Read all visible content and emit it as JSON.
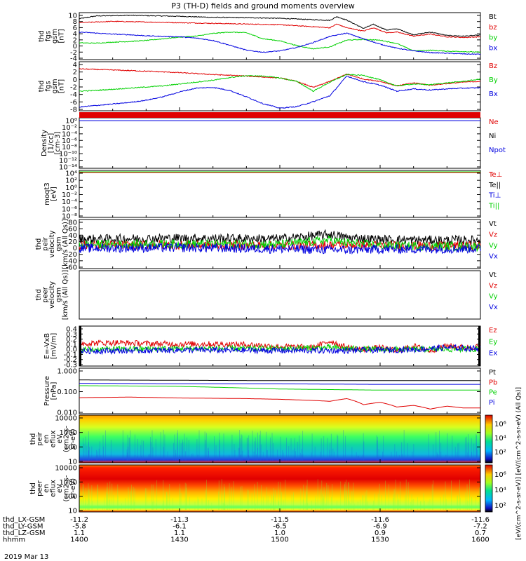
{
  "title": "P3 (TH-D) fields and ground moments overview",
  "date_label": "2019 Mar 13",
  "colors": {
    "black": "#000000",
    "red": "#e00000",
    "green": "#00d000",
    "blue": "#0000e0"
  },
  "chart_data": [
    {
      "id": "p1",
      "type": "line",
      "ylabel": [
        "thd",
        "fgs",
        "gsm",
        "[nT]"
      ],
      "yticks": [
        "10",
        "8",
        "6",
        "4",
        "2",
        "0",
        "-2",
        "-4"
      ],
      "legend": [
        {
          "label": "Bt",
          "color": "#000000"
        },
        {
          "label": "bz",
          "color": "#e00000"
        },
        {
          "label": "by",
          "color": "#00d000"
        },
        {
          "label": "bx",
          "color": "#0000e0"
        }
      ],
      "series": [
        {
          "name": "Bt",
          "color": "#000000",
          "x": [
            1400,
            1405,
            1415,
            1425,
            1430,
            1440,
            1450,
            1500,
            1510,
            1515,
            1517,
            1520,
            1525,
            1528,
            1532,
            1535,
            1540,
            1545,
            1550,
            1555,
            1600
          ],
          "y": [
            8.2,
            9.0,
            9.2,
            9.0,
            8.9,
            8.6,
            8.5,
            8.3,
            7.9,
            7.7,
            8.8,
            7.8,
            5.3,
            6.5,
            4.8,
            5.2,
            3.4,
            4.2,
            3.2,
            3.0,
            3.3
          ]
        },
        {
          "name": "bz",
          "color": "#e00000",
          "x": [
            1400,
            1410,
            1420,
            1430,
            1440,
            1450,
            1500,
            1510,
            1515,
            1517,
            1520,
            1525,
            1528,
            1532,
            1535,
            1540,
            1545,
            1550,
            1555,
            1600
          ],
          "y": [
            7.0,
            7.4,
            7.2,
            7.0,
            6.8,
            6.6,
            6.4,
            5.8,
            5.5,
            6.6,
            5.5,
            4.5,
            5.5,
            4.0,
            4.2,
            3.0,
            3.6,
            2.8,
            2.6,
            2.8
          ]
        },
        {
          "name": "by",
          "color": "#00d000",
          "x": [
            1400,
            1405,
            1410,
            1415,
            1420,
            1425,
            1430,
            1435,
            1440,
            1445,
            1450,
            1455,
            1500,
            1505,
            1510,
            1515,
            1520,
            1525,
            1530,
            1535,
            1540,
            1545,
            1550,
            1555,
            1600
          ],
          "y": [
            1.0,
            0.9,
            1.2,
            1.4,
            1.7,
            2.2,
            2.7,
            3.0,
            3.8,
            4.2,
            4.0,
            2.2,
            1.6,
            0.2,
            -0.8,
            -0.2,
            1.8,
            2.0,
            1.8,
            0.8,
            -1.4,
            -1.2,
            -1.5,
            -1.6,
            -1.8
          ]
        },
        {
          "name": "bx",
          "color": "#0000e0",
          "x": [
            1400,
            1405,
            1410,
            1415,
            1420,
            1425,
            1430,
            1435,
            1440,
            1445,
            1450,
            1455,
            1500,
            1505,
            1510,
            1515,
            1520,
            1525,
            1530,
            1535,
            1540,
            1545,
            1550,
            1555,
            1600
          ],
          "y": [
            4.2,
            3.9,
            3.6,
            3.4,
            3.1,
            2.9,
            2.8,
            2.4,
            1.7,
            0.3,
            -1.2,
            -1.8,
            -1.4,
            -0.4,
            1.1,
            2.9,
            3.9,
            2.2,
            0.6,
            -0.6,
            -1.4,
            -1.9,
            -2.1,
            -2.3,
            -2.4
          ]
        }
      ]
    },
    {
      "id": "p2",
      "type": "line",
      "ylabel": [
        "thd",
        "fgs",
        "gsm",
        "[nT]"
      ],
      "yticks": [
        "4",
        "2",
        "0",
        "-2",
        "-4",
        "-6",
        "-8"
      ],
      "legend": [
        {
          "label": "Bz",
          "color": "#e00000"
        },
        {
          "label": "By",
          "color": "#00d000"
        },
        {
          "label": "Bx",
          "color": "#0000e0"
        }
      ],
      "series": [
        {
          "name": "Bz",
          "color": "#e00000",
          "x": [
            1400,
            1410,
            1420,
            1430,
            1440,
            1450,
            1500,
            1505,
            1510,
            1515,
            1520,
            1525,
            1530,
            1535,
            1540,
            1545,
            1550,
            1555,
            1600
          ],
          "y": [
            2.1,
            1.8,
            1.5,
            1.1,
            0.6,
            0.2,
            -0.3,
            -1.2,
            -2.8,
            -1.2,
            0.7,
            -0.6,
            -1.2,
            -2.4,
            -1.6,
            -2.2,
            -1.8,
            -1.4,
            -1.2
          ]
        },
        {
          "name": "By",
          "color": "#00d000",
          "x": [
            1400,
            1405,
            1410,
            1415,
            1420,
            1425,
            1430,
            1435,
            1440,
            1445,
            1450,
            1455,
            1500,
            1505,
            1510,
            1515,
            1520,
            1525,
            1530,
            1535,
            1540,
            1545,
            1550,
            1555,
            1600
          ],
          "y": [
            -3.8,
            -3.6,
            -3.3,
            -3.0,
            -2.7,
            -2.4,
            -1.9,
            -1.4,
            -0.9,
            -0.2,
            0.3,
            0.2,
            -0.3,
            -1.2,
            -3.8,
            -1.4,
            0.6,
            0.4,
            -0.8,
            -2.4,
            -1.9,
            -2.1,
            -1.6,
            -1.2,
            -0.6
          ]
        },
        {
          "name": "Bx",
          "color": "#0000e0",
          "x": [
            1400,
            1405,
            1410,
            1415,
            1420,
            1425,
            1430,
            1435,
            1440,
            1445,
            1450,
            1455,
            1500,
            1505,
            1510,
            1515,
            1520,
            1525,
            1530,
            1535,
            1540,
            1545,
            1550,
            1555,
            1600
          ],
          "y": [
            -8.0,
            -7.6,
            -7.2,
            -6.8,
            -6.2,
            -5.3,
            -4.0,
            -3.0,
            -2.8,
            -3.6,
            -5.3,
            -7.1,
            -8.3,
            -7.9,
            -6.6,
            -5.0,
            0.2,
            -1.3,
            -2.2,
            -3.8,
            -3.2,
            -3.5,
            -3.2,
            -3.0,
            -2.9
          ]
        }
      ]
    },
    {
      "id": "p3",
      "type": "line",
      "ylabel": [
        "Density",
        "[1/cc]",
        "[cm-3]"
      ],
      "yticks": [
        "10⁰",
        "10⁻²",
        "10⁻⁴",
        "10⁻⁶",
        "10⁻⁸",
        "10⁻¹⁰",
        "10⁻¹²",
        "10⁻¹⁴"
      ],
      "legend": [
        {
          "label": "Ne",
          "color": "#e00000"
        },
        {
          "label": "Ni",
          "color": "#000000"
        },
        {
          "label": "Npot",
          "color": "#0000e0"
        }
      ],
      "series": []
    },
    {
      "id": "p4",
      "type": "line",
      "ylabel": [
        "moqt3",
        "[eV]"
      ],
      "yticks": [
        "10⁴",
        "10²",
        "10⁰",
        "10⁻²",
        "10⁻⁴",
        "10⁻⁶",
        "10⁻⁸"
      ],
      "legend": [
        {
          "label": "Te⊥",
          "color": "#e00000"
        },
        {
          "label": "Te||",
          "color": "#000000"
        },
        {
          "label": "Ti⊥",
          "color": "#0000e0"
        },
        {
          "label": "Ti||",
          "color": "#00d000"
        }
      ],
      "series": []
    },
    {
      "id": "p5",
      "type": "line",
      "ylabel": [
        "thd",
        "peir",
        "velocity",
        "gsm",
        "[km/s (All Qs)]"
      ],
      "yticks": [
        "80",
        "60",
        "40",
        "20",
        "0",
        "-20",
        "-40",
        "-60"
      ],
      "legend": [
        {
          "label": "Vt",
          "color": "#000000"
        },
        {
          "label": "Vz",
          "color": "#e00000"
        },
        {
          "label": "Vy",
          "color": "#00d000"
        },
        {
          "label": "Vx",
          "color": "#0000e0"
        }
      ],
      "series": [
        {
          "name": "Vt",
          "color": "#000000",
          "x": [
            1400,
            1430,
            1500,
            1515,
            1520,
            1530,
            1545,
            1600
          ],
          "y": [
            25,
            28,
            26,
            40,
            30,
            24,
            22,
            22
          ]
        },
        {
          "name": "Vz",
          "color": "#e00000",
          "x": [
            1400,
            1430,
            1500,
            1520,
            1530,
            1600
          ],
          "y": [
            6,
            7,
            5,
            8,
            5,
            4
          ]
        },
        {
          "name": "Vy",
          "color": "#00d000",
          "x": [
            1400,
            1430,
            1500,
            1515,
            1520,
            1530,
            1600
          ],
          "y": [
            8,
            10,
            9,
            22,
            14,
            5,
            2
          ]
        },
        {
          "name": "Vx",
          "color": "#0000e0",
          "x": [
            1400,
            1430,
            1500,
            1520,
            1530,
            1600
          ],
          "y": [
            -3,
            -1,
            -5,
            -8,
            -6,
            -4
          ]
        }
      ]
    },
    {
      "id": "p6",
      "type": "line",
      "ylabel": [
        "thd",
        "peer",
        "velocity",
        "gsm",
        "[km/s (All Qs)]"
      ],
      "yticks": [],
      "legend": [
        {
          "label": "Vt",
          "color": "#000000"
        },
        {
          "label": "Vz",
          "color": "#e00000"
        },
        {
          "label": "Vy",
          "color": "#00d000"
        },
        {
          "label": "Vx",
          "color": "#0000e0"
        }
      ],
      "series": []
    },
    {
      "id": "p7",
      "type": "line",
      "ylabel": [
        "E=-VxB",
        "[mV/m]"
      ],
      "yticks": [
        "0.4",
        "0.3",
        "0.2",
        "0.1",
        "0.0",
        "-0.1",
        "-0.2",
        "-0.3"
      ],
      "legend": [
        {
          "label": "Ez",
          "color": "#e00000"
        },
        {
          "label": "Ey",
          "color": "#00d000"
        },
        {
          "label": "Ex",
          "color": "#0000e0"
        }
      ],
      "series": [
        {
          "name": "Ez",
          "color": "#e00000",
          "x": [
            1400,
            1410,
            1420,
            1430,
            1440,
            1450,
            1500,
            1510,
            1515,
            1520,
            1525,
            1530,
            1535,
            1540,
            1545,
            1550,
            1555,
            1600
          ],
          "y": [
            0.1,
            0.12,
            0.1,
            0.09,
            0.09,
            0.08,
            0.04,
            0.02,
            0.15,
            0.02,
            -0.02,
            0.02,
            -0.05,
            0.05,
            -0.04,
            0.06,
            0.02,
            0.04
          ]
        },
        {
          "name": "Ey",
          "color": "#00d000",
          "x": [
            1400,
            1430,
            1500,
            1515,
            1520,
            1530,
            1600
          ],
          "y": [
            -0.02,
            0.0,
            0.0,
            0.02,
            0.0,
            -0.02,
            -0.01
          ]
        },
        {
          "name": "Ex",
          "color": "#0000e0",
          "x": [
            1400,
            1430,
            1500,
            1520,
            1540,
            1550,
            1600
          ],
          "y": [
            -0.05,
            -0.03,
            -0.04,
            -0.04,
            -0.02,
            0.02,
            0.0
          ]
        }
      ]
    },
    {
      "id": "p8",
      "type": "line",
      "scale": "log",
      "ylabel": [
        "Pressure",
        "[nPa]"
      ],
      "yticks": [
        "1.000",
        "0.100",
        "0.010"
      ],
      "legend": [
        {
          "label": "Pt",
          "color": "#000000"
        },
        {
          "label": "Pb",
          "color": "#e00000"
        },
        {
          "label": "Pe",
          "color": "#00d000"
        },
        {
          "label": "Pi",
          "color": "#0000e0"
        }
      ],
      "series": [
        {
          "name": "Pt",
          "color": "#000000",
          "x": [
            1400,
            1430,
            1500,
            1530,
            1600
          ],
          "y": [
            0.24,
            0.23,
            0.22,
            0.22,
            0.22
          ]
        },
        {
          "name": "Pi",
          "color": "#0000e0",
          "x": [
            1400,
            1430,
            1500,
            1530,
            1600
          ],
          "y": [
            0.16,
            0.15,
            0.15,
            0.14,
            0.14
          ]
        },
        {
          "name": "Pe",
          "color": "#00d000",
          "x": [
            1400,
            1430,
            1450,
            1500,
            1530,
            1600
          ],
          "y": [
            0.12,
            0.11,
            0.09,
            0.08,
            0.07,
            0.07
          ]
        },
        {
          "name": "Pb",
          "color": "#e00000",
          "x": [
            1400,
            1415,
            1430,
            1450,
            1500,
            1510,
            1515,
            1520,
            1525,
            1530,
            1535,
            1540,
            1545,
            1550,
            1555,
            1600
          ],
          "y": [
            0.028,
            0.03,
            0.027,
            0.025,
            0.023,
            0.02,
            0.018,
            0.025,
            0.012,
            0.016,
            0.009,
            0.011,
            0.007,
            0.01,
            0.008,
            0.008
          ]
        }
      ]
    },
    {
      "id": "p9",
      "type": "heatmap",
      "ylabel": [
        "thd",
        "peir",
        "en",
        "eflux",
        "eV",
        "(cm2-s-",
        "sr-eV)"
      ],
      "yticks": [
        "10000",
        "1000",
        "100",
        "10"
      ],
      "legend": []
    },
    {
      "id": "p10",
      "type": "heatmap",
      "ylabel": [
        "thd",
        "peer",
        "en",
        "eflux",
        "eV",
        "(cm2-s-",
        "sr-eV)"
      ],
      "yticks": [
        "10000",
        "1000",
        "100",
        "10"
      ],
      "legend": []
    }
  ],
  "colorbar": {
    "ticks": [
      "10⁶",
      "10⁴",
      "10²",
      "10⁶",
      "10⁴",
      "10²"
    ],
    "label": "[eV/(cm^2-s-sr-eV)] [eV/(cm^2-s-sr-eV) (All Qs)]"
  },
  "x_axis": {
    "labels": [
      "1400",
      "1430",
      "1500",
      "1530",
      "1600"
    ],
    "rows": [
      {
        "name": "thd_LX-GSM",
        "values": [
          "-11.2",
          "-11.3",
          "-11.5",
          "-11.6",
          "-11.6"
        ]
      },
      {
        "name": "thd_LY-GSM",
        "values": [
          "-5.8",
          "-6.1",
          "-6.5",
          "-6.9",
          "-7.2"
        ]
      },
      {
        "name": "thd_LZ-GSM",
        "values": [
          "1.1",
          "1.1",
          "1.0",
          "0.9",
          "0.7"
        ]
      },
      {
        "name": "hhmm",
        "values": [
          "1400",
          "1430",
          "1500",
          "1530",
          "1600"
        ]
      }
    ]
  }
}
